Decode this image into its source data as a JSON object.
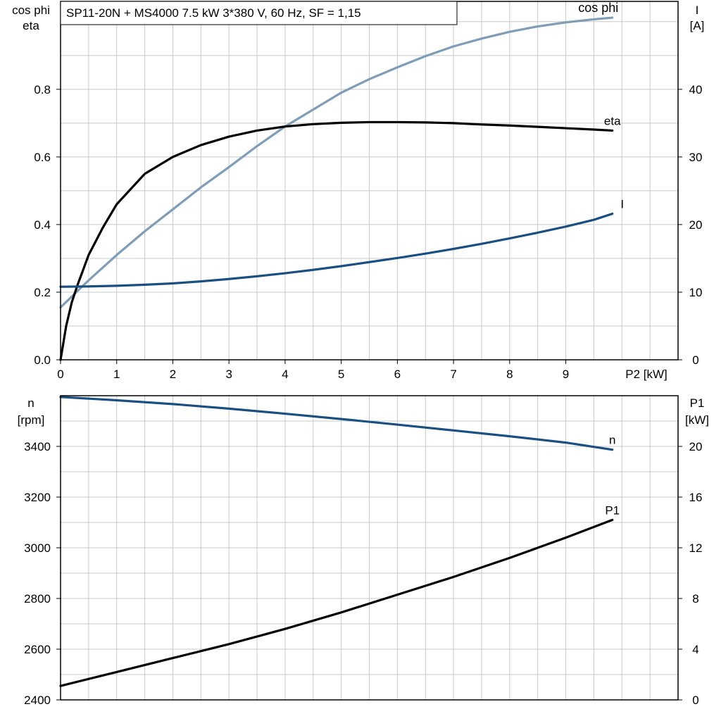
{
  "title": "SP11-20N + MS4000   7.5 kW   3*380 V, 60 Hz, SF = 1,15",
  "colors": {
    "cosphi": "#7d9db8",
    "eta": "#000000",
    "I": "#1a4f82",
    "n": "#1a4f82",
    "P1": "#000000"
  },
  "chart_data": [
    {
      "type": "line",
      "x_axis": {
        "label": "P2 [kW]",
        "range": [
          0,
          11
        ],
        "ticks": [
          0,
          1,
          2,
          3,
          4,
          5,
          6,
          7,
          8,
          9
        ]
      },
      "y_left": {
        "label_lines": [
          "cos phi",
          "eta"
        ],
        "range": [
          0,
          1.06
        ],
        "ticks": [
          0.0,
          0.2,
          0.4,
          0.6,
          0.8
        ],
        "tick_labels": [
          "0.0",
          "0.2",
          "0.4",
          "0.6",
          "0.8"
        ]
      },
      "y_right": {
        "label_lines": [
          "I",
          "[A]"
        ],
        "range": [
          0,
          53
        ],
        "ticks": [
          0,
          10,
          20,
          30,
          40
        ],
        "tick_labels": [
          "0",
          "10",
          "20",
          "30",
          "40"
        ]
      },
      "series": [
        {
          "name": "cos phi",
          "axis": "left",
          "color_key": "cosphi",
          "x": [
            0,
            0.5,
            1,
            1.5,
            2,
            2.5,
            3,
            3.5,
            4,
            4.5,
            5,
            5.5,
            6,
            6.5,
            7,
            7.5,
            8,
            8.5,
            9,
            9.5,
            9.83
          ],
          "y": [
            0.155,
            0.235,
            0.31,
            0.38,
            0.445,
            0.51,
            0.57,
            0.632,
            0.69,
            0.74,
            0.79,
            0.83,
            0.865,
            0.898,
            0.927,
            0.95,
            0.97,
            0.986,
            0.998,
            1.007,
            1.012
          ]
        },
        {
          "name": "eta",
          "axis": "left",
          "color_key": "eta",
          "x": [
            0,
            0.1,
            0.2,
            0.3,
            0.5,
            0.75,
            1,
            1.5,
            2,
            2.5,
            3,
            3.5,
            4,
            4.5,
            5,
            5.5,
            6,
            6.5,
            7,
            7.5,
            8,
            8.5,
            9,
            9.5,
            9.83
          ],
          "y": [
            0,
            0.1,
            0.17,
            0.22,
            0.31,
            0.39,
            0.46,
            0.55,
            0.6,
            0.635,
            0.66,
            0.678,
            0.69,
            0.697,
            0.701,
            0.703,
            0.703,
            0.702,
            0.7,
            0.696,
            0.693,
            0.689,
            0.685,
            0.681,
            0.678
          ]
        },
        {
          "name": "I",
          "axis": "right",
          "color_key": "I",
          "x": [
            0,
            0.5,
            1,
            1.5,
            2,
            2.5,
            3,
            3.5,
            4,
            4.5,
            5,
            5.5,
            6,
            6.5,
            7,
            7.5,
            8,
            8.5,
            9,
            9.5,
            9.83
          ],
          "y": [
            10.8,
            10.85,
            10.95,
            11.1,
            11.3,
            11.6,
            11.95,
            12.35,
            12.8,
            13.3,
            13.85,
            14.45,
            15.05,
            15.7,
            16.4,
            17.15,
            17.95,
            18.8,
            19.7,
            20.7,
            21.6
          ]
        }
      ]
    },
    {
      "type": "line",
      "x_axis": {
        "range": [
          0,
          11
        ]
      },
      "y_left": {
        "label_lines": [
          "n",
          "[rpm]"
        ],
        "range": [
          2400,
          3600
        ],
        "ticks": [
          2400,
          2600,
          2800,
          3000,
          3200,
          3400
        ],
        "tick_labels": [
          "2400",
          "2600",
          "2800",
          "3000",
          "3200",
          "3400"
        ]
      },
      "y_right": {
        "label_lines": [
          "P1",
          "[kW]"
        ],
        "range": [
          0,
          24
        ],
        "ticks": [
          0,
          4,
          8,
          12,
          16,
          20
        ],
        "tick_labels": [
          "0",
          "4",
          "8",
          "12",
          "16",
          "20"
        ]
      },
      "series": [
        {
          "name": "n",
          "axis": "left",
          "color_key": "n",
          "x": [
            0,
            1,
            2,
            3,
            4,
            5,
            6,
            7,
            8,
            9,
            9.83
          ],
          "y": [
            3595,
            3582,
            3567,
            3549,
            3529,
            3508,
            3486,
            3463,
            3440,
            3415,
            3387
          ]
        },
        {
          "name": "P1",
          "axis": "right",
          "color_key": "P1",
          "x": [
            0,
            1,
            2,
            3,
            4,
            5,
            6,
            7,
            8,
            9,
            9.83
          ],
          "y": [
            1.1,
            2.2,
            3.3,
            4.4,
            5.6,
            6.9,
            8.3,
            9.7,
            11.2,
            12.8,
            14.2
          ]
        }
      ]
    }
  ]
}
